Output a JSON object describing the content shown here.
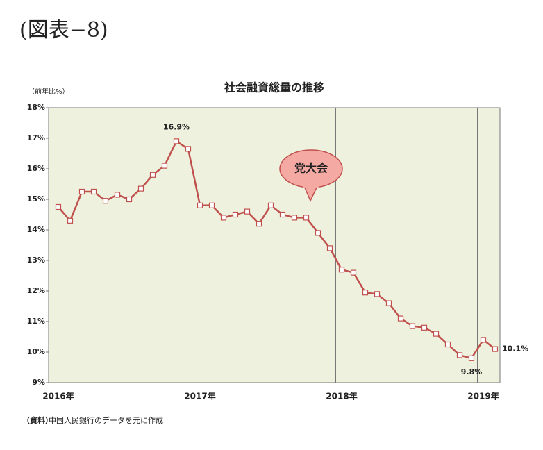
{
  "heading": "(図表−8)",
  "source_label": "（資料）",
  "source": "中国人民銀行のデータを元に作成",
  "chart_data": {
    "type": "line",
    "title": "社会融資総量の推移",
    "y_label": "（前年比%）",
    "annotation": "党大会",
    "categories": [
      "2016年",
      null,
      null,
      null,
      null,
      null,
      null,
      null,
      null,
      null,
      null,
      null,
      "2017年",
      null,
      null,
      null,
      null,
      null,
      null,
      null,
      null,
      null,
      null,
      null,
      "2018年",
      null,
      null,
      null,
      null,
      null,
      null,
      null,
      null,
      null,
      null,
      null,
      "2019年",
      null
    ],
    "series": [
      {
        "color": "#c0504d",
        "values": [
          14.75,
          14.3,
          15.25,
          15.25,
          14.95,
          15.15,
          15.0,
          15.35,
          15.8,
          16.1,
          16.9,
          16.65,
          14.8,
          14.8,
          14.4,
          14.5,
          14.6,
          14.2,
          14.8,
          14.5,
          14.4,
          14.4,
          13.9,
          13.4,
          12.7,
          12.6,
          11.95,
          11.9,
          11.6,
          11.1,
          10.85,
          10.8,
          10.6,
          10.25,
          9.9,
          9.8,
          10.4,
          10.1
        ],
        "value_labels": [
          null,
          null,
          null,
          null,
          null,
          null,
          null,
          null,
          null,
          null,
          "16.9%",
          null,
          null,
          null,
          null,
          null,
          null,
          null,
          null,
          null,
          null,
          null,
          null,
          null,
          null,
          null,
          null,
          null,
          null,
          null,
          null,
          null,
          null,
          null,
          null,
          "9.8%",
          null,
          "10.1%"
        ]
      }
    ],
    "ylim": [
      9,
      18
    ],
    "yticks": [
      {
        "value": 9,
        "label": "9%"
      },
      {
        "value": 10,
        "label": "10%"
      },
      {
        "value": 11,
        "label": "11%"
      },
      {
        "value": 12,
        "label": "12%"
      },
      {
        "value": 13,
        "label": "13%"
      },
      {
        "value": 14,
        "label": "14%"
      },
      {
        "value": 15,
        "label": "15%"
      },
      {
        "value": 16,
        "label": "16%"
      },
      {
        "value": 17,
        "label": "17%"
      },
      {
        "value": 18,
        "label": "18%"
      }
    ]
  }
}
